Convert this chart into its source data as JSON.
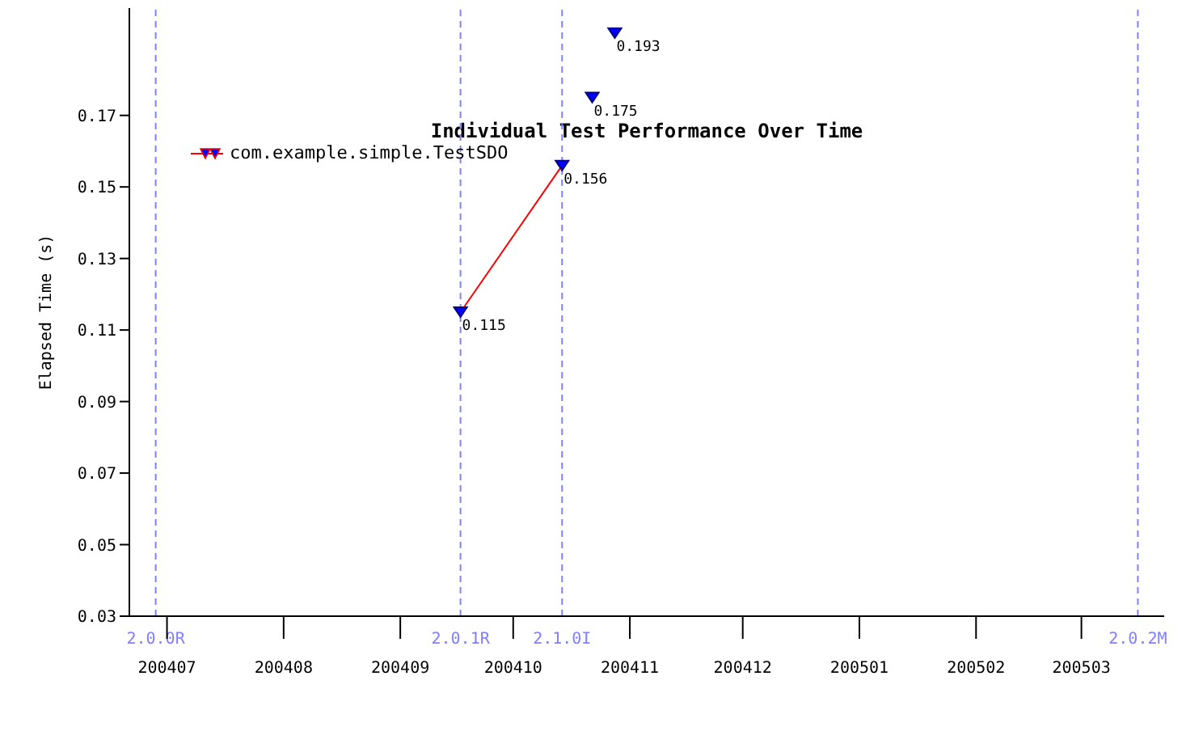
{
  "chart_data": {
    "type": "line",
    "title": "Individual Test Performance Over Time",
    "ylabel": "Elapsed Time (s)",
    "series": [
      {
        "name": "com.example.simple.TestSDO",
        "color": "#ff0000",
        "x": [
          "2004-09-17",
          "2004-10-14"
        ],
        "values": [
          0.115,
          0.156
        ]
      },
      {
        "type": "scatter",
        "color": "#0000ff",
        "x": [
          "2004-10-22",
          "2004-10-28"
        ],
        "values": [
          0.175,
          0.193
        ]
      }
    ],
    "xlim": [
      "2004-06-21",
      "2005-03-23"
    ],
    "xticks": [
      {
        "value": "2004-07-01",
        "label": "200407"
      },
      {
        "value": "2004-08-01",
        "label": "200408"
      },
      {
        "value": "2004-09-01",
        "label": "200409"
      },
      {
        "value": "2004-10-01",
        "label": "200410"
      },
      {
        "value": "2004-11-01",
        "label": "200411"
      },
      {
        "value": "2004-12-01",
        "label": "200412"
      },
      {
        "value": "2005-01-01",
        "label": "200501"
      },
      {
        "value": "2005-02-01",
        "label": "200502"
      },
      {
        "value": "2005-03-01",
        "label": "200503"
      }
    ],
    "ylim": [
      0.03,
      0.2
    ],
    "yticks": [
      0.03,
      0.05,
      0.07,
      0.09,
      0.11,
      0.13,
      0.15,
      0.17
    ],
    "ref_lines": [
      {
        "axis": "x",
        "value": "2004-06-28",
        "label": "2.0.0R",
        "color": "#8080ff",
        "line_style": "dashed"
      },
      {
        "axis": "x",
        "value": "2004-09-17",
        "label": "2.0.1R",
        "color": "#8080ff",
        "line_style": "dashed"
      },
      {
        "axis": "x",
        "value": "2004-10-14",
        "label": "2.1.0I",
        "color": "#8080ff",
        "line_style": "dashed"
      },
      {
        "axis": "x",
        "value": "2005-03-16",
        "label": "2.0.2M",
        "color": "#8080ff",
        "line_style": "dashed"
      }
    ],
    "data_labels": true,
    "marker": "triangle",
    "legend": "top left",
    "grid": false
  }
}
